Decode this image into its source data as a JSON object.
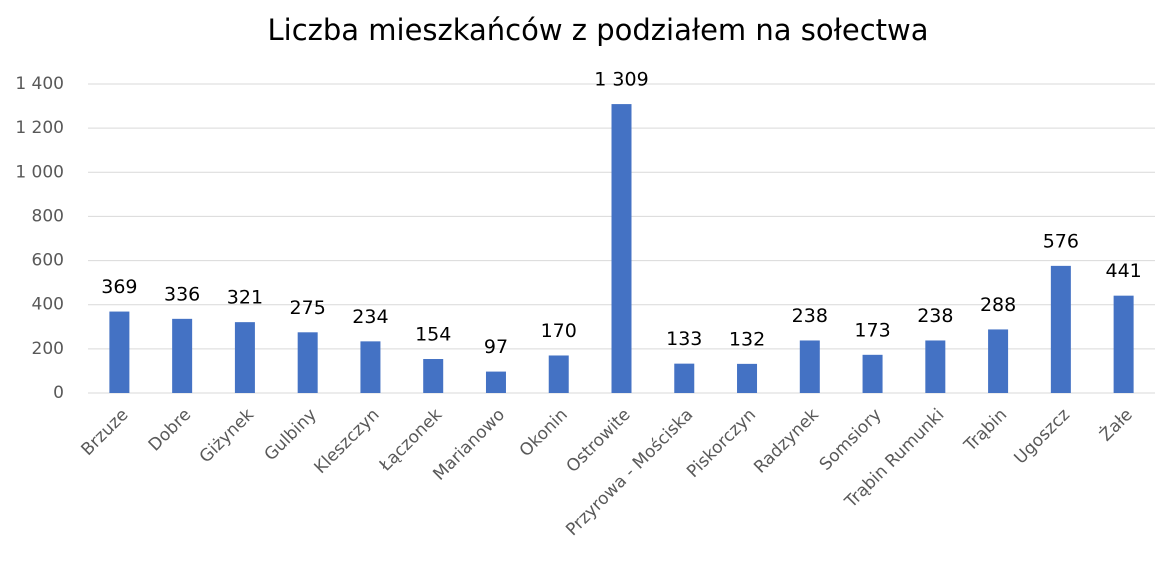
{
  "chart_data": {
    "type": "bar",
    "title": "Liczba mieszkańców z podziałem na sołectwa",
    "categories": [
      "Brzuze",
      "Dobre",
      "Giżynek",
      "Gulbiny",
      "Kleszczyn",
      "Łączonek",
      "Marianowo",
      "Okonin",
      "Ostrowite",
      "Przyrowa - Mościska",
      "Piskorczyn",
      "Radzynek",
      "Somsiory",
      "Trąbin Rumunki",
      "Trąbin",
      "Ugoszcz",
      "Żałe"
    ],
    "values": [
      369,
      336,
      321,
      275,
      234,
      154,
      97,
      170,
      1309,
      133,
      132,
      238,
      173,
      238,
      288,
      576,
      441
    ],
    "value_labels": [
      "369",
      "336",
      "321",
      "275",
      "234",
      "154",
      "97",
      "170",
      "1 309",
      "133",
      "132",
      "238",
      "173",
      "238",
      "288",
      "576",
      "441"
    ],
    "color": "#4472c4",
    "ylim": [
      0,
      1400
    ],
    "yticks": [
      0,
      200,
      400,
      600,
      800,
      {
        "value": 1000,
        "label": "1 000"
      },
      {
        "value": 1200,
        "label": "1 200"
      },
      {
        "value": 1400,
        "label": "1 400"
      }
    ],
    "grid": true
  }
}
